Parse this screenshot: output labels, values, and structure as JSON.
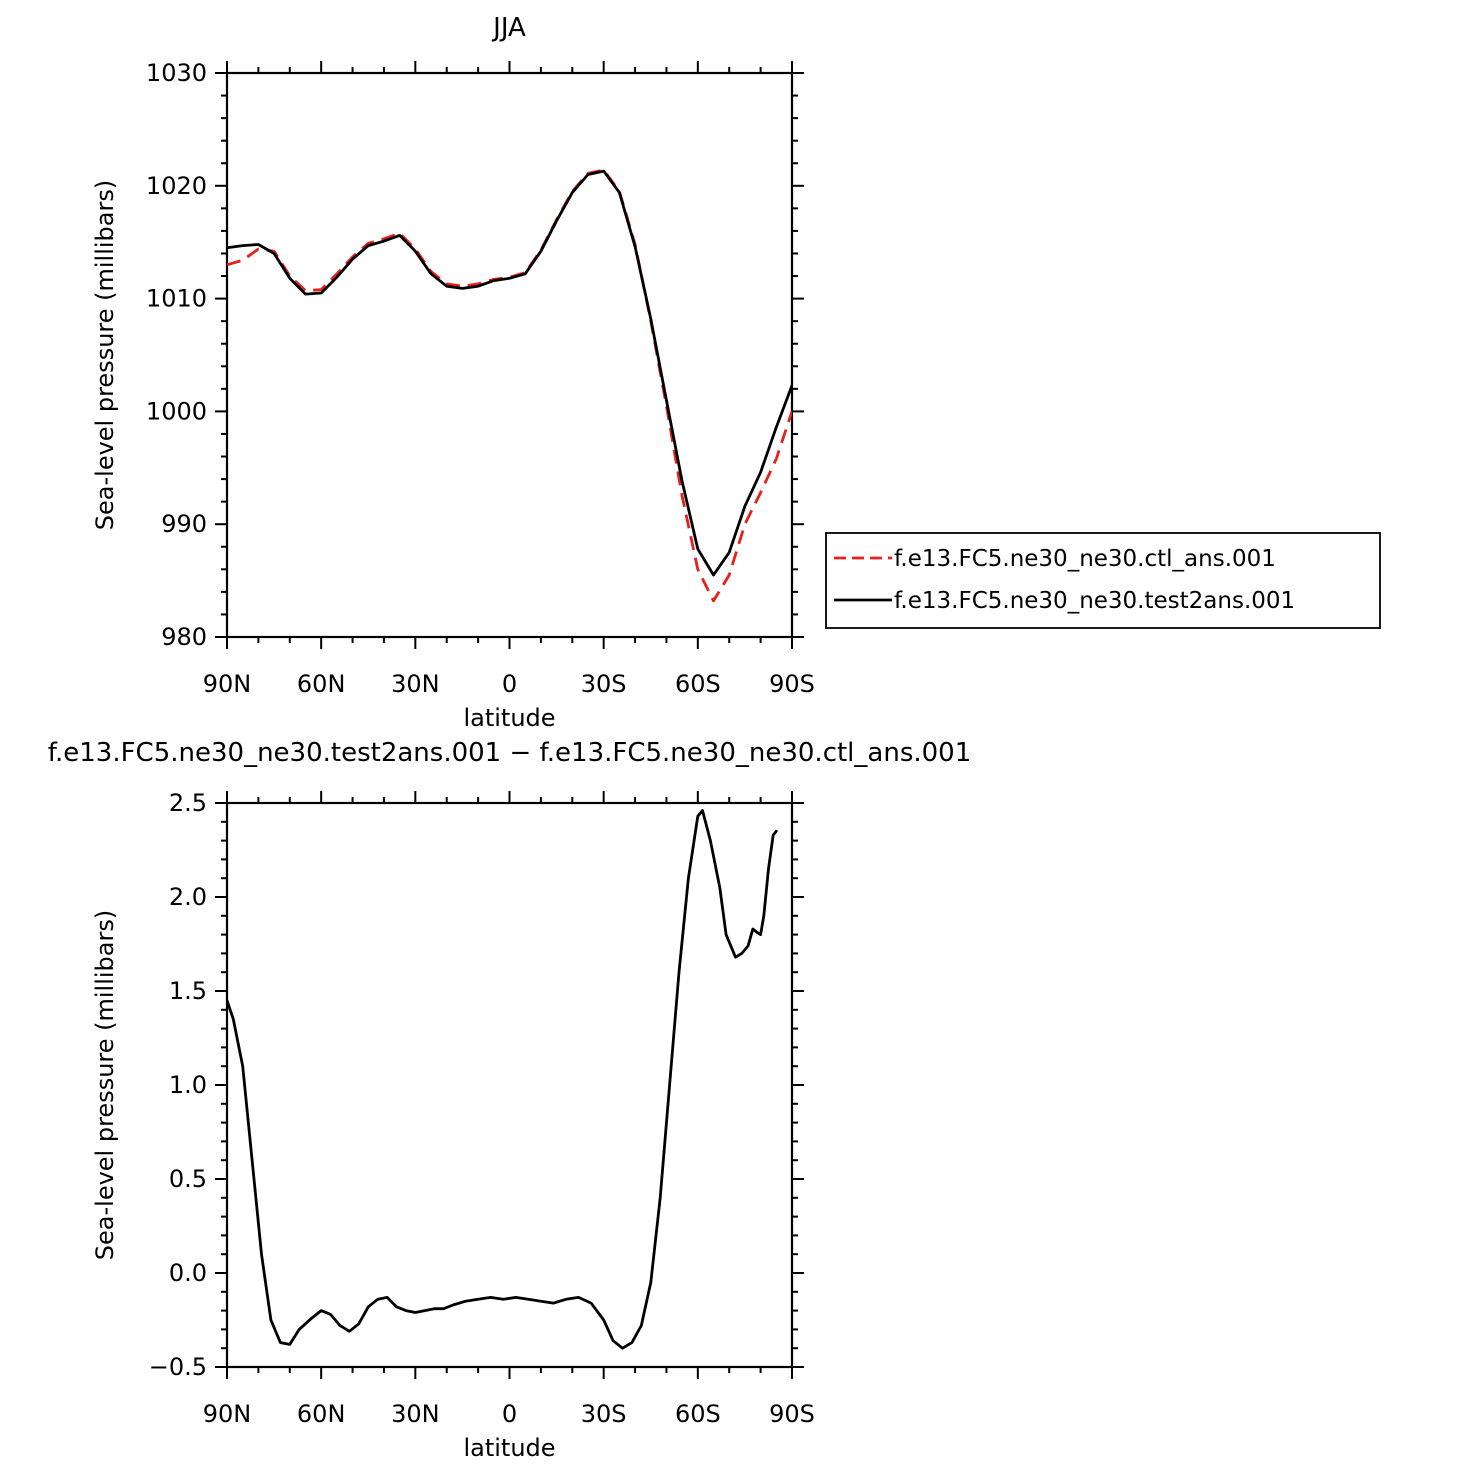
{
  "chart_data": [
    {
      "type": "line",
      "title": "JJA",
      "xlabel": "latitude",
      "ylabel": "Sea-level pressure (millibars)",
      "xlim": [
        90,
        -90
      ],
      "ylim": [
        980,
        1030
      ],
      "x_ticks": [
        90,
        60,
        30,
        0,
        -30,
        -60,
        -90
      ],
      "x_tick_labels": [
        "90N",
        "60N",
        "30N",
        "0",
        "30S",
        "60S",
        "90S"
      ],
      "y_ticks": [
        980,
        990,
        1000,
        1010,
        1020,
        1030
      ],
      "y_tick_labels": [
        "980",
        "990",
        "1000",
        "1010",
        "1020",
        "1030"
      ],
      "legend": "right",
      "series": [
        {
          "name": "f.e13.FC5.ne30_ne30.ctl_ans.001",
          "color": "#e8201c",
          "dash": "dashed",
          "points": [
            [
              90,
              1013.0
            ],
            [
              85,
              1013.4
            ],
            [
              80,
              1014.4
            ],
            [
              75,
              1014.2
            ],
            [
              70,
              1012.0
            ],
            [
              65,
              1010.7
            ],
            [
              60,
              1010.8
            ],
            [
              55,
              1012.2
            ],
            [
              50,
              1013.7
            ],
            [
              45,
              1014.9
            ],
            [
              40,
              1015.3
            ],
            [
              35,
              1015.8
            ],
            [
              30,
              1014.4
            ],
            [
              25,
              1012.4
            ],
            [
              20,
              1011.3
            ],
            [
              15,
              1011.1
            ],
            [
              10,
              1011.3
            ],
            [
              5,
              1011.7
            ],
            [
              0,
              1011.9
            ],
            [
              -5,
              1012.3
            ],
            [
              -10,
              1014.3
            ],
            [
              -15,
              1017.0
            ],
            [
              -20,
              1019.5
            ],
            [
              -25,
              1021.1
            ],
            [
              -30,
              1021.4
            ],
            [
              -35,
              1019.5
            ],
            [
              -40,
              1014.8
            ],
            [
              -45,
              1008.0
            ],
            [
              -50,
              1000.5
            ],
            [
              -55,
              992.5
            ],
            [
              -60,
              986.0
            ],
            [
              -65,
              983.2
            ],
            [
              -70,
              985.5
            ],
            [
              -75,
              990.0
            ],
            [
              -80,
              992.8
            ],
            [
              -85,
              995.8
            ],
            [
              -90,
              1000.0
            ]
          ]
        },
        {
          "name": "f.e13.FC5.ne30_ne30.test2ans.001",
          "color": "#000000",
          "dash": "solid",
          "points": [
            [
              90,
              1014.5
            ],
            [
              85,
              1014.7
            ],
            [
              80,
              1014.8
            ],
            [
              75,
              1014.0
            ],
            [
              70,
              1011.8
            ],
            [
              65,
              1010.4
            ],
            [
              60,
              1010.5
            ],
            [
              55,
              1011.9
            ],
            [
              50,
              1013.5
            ],
            [
              45,
              1014.7
            ],
            [
              40,
              1015.1
            ],
            [
              35,
              1015.6
            ],
            [
              30,
              1014.2
            ],
            [
              25,
              1012.2
            ],
            [
              20,
              1011.1
            ],
            [
              15,
              1010.9
            ],
            [
              10,
              1011.1
            ],
            [
              5,
              1011.6
            ],
            [
              0,
              1011.8
            ],
            [
              -5,
              1012.2
            ],
            [
              -10,
              1014.2
            ],
            [
              -15,
              1016.9
            ],
            [
              -20,
              1019.4
            ],
            [
              -25,
              1021.0
            ],
            [
              -30,
              1021.3
            ],
            [
              -35,
              1019.4
            ],
            [
              -40,
              1014.6
            ],
            [
              -45,
              1008.2
            ],
            [
              -50,
              1001.0
            ],
            [
              -55,
              993.8
            ],
            [
              -60,
              987.8
            ],
            [
              -65,
              985.5
            ],
            [
              -70,
              987.5
            ],
            [
              -75,
              991.6
            ],
            [
              -80,
              994.6
            ],
            [
              -85,
              998.6
            ],
            [
              -90,
              1002.3
            ]
          ]
        }
      ]
    },
    {
      "type": "line",
      "title": "f.e13.FC5.ne30_ne30.test2ans.001 − f.e13.FC5.ne30_ne30.ctl_ans.001",
      "xlabel": "latitude",
      "ylabel": "Sea-level pressure (millibars)",
      "xlim": [
        90,
        -90
      ],
      "ylim": [
        -0.5,
        2.5
      ],
      "x_ticks": [
        90,
        60,
        30,
        0,
        -30,
        -60,
        -90
      ],
      "x_tick_labels": [
        "90N",
        "60N",
        "30N",
        "0",
        "30S",
        "60S",
        "90S"
      ],
      "y_ticks": [
        -0.5,
        0.0,
        0.5,
        1.0,
        1.5,
        2.0,
        2.5
      ],
      "y_tick_labels": [
        "−0.5",
        "0.0",
        "0.5",
        "1.0",
        "1.5",
        "2.0",
        "2.5"
      ],
      "series": [
        {
          "color": "#000000",
          "dash": "solid",
          "points": [
            [
              90,
              1.45
            ],
            [
              88,
              1.35
            ],
            [
              85,
              1.1
            ],
            [
              82,
              0.6
            ],
            [
              79,
              0.1
            ],
            [
              76,
              -0.25
            ],
            [
              73,
              -0.37
            ],
            [
              70,
              -0.38
            ],
            [
              67,
              -0.3
            ],
            [
              63,
              -0.24
            ],
            [
              60,
              -0.2
            ],
            [
              57,
              -0.22
            ],
            [
              54,
              -0.28
            ],
            [
              51,
              -0.31
            ],
            [
              48,
              -0.27
            ],
            [
              45,
              -0.18
            ],
            [
              42,
              -0.14
            ],
            [
              39,
              -0.13
            ],
            [
              36,
              -0.18
            ],
            [
              33,
              -0.2
            ],
            [
              30,
              -0.21
            ],
            [
              27,
              -0.2
            ],
            [
              24,
              -0.19
            ],
            [
              21,
              -0.19
            ],
            [
              18,
              -0.17
            ],
            [
              14,
              -0.15
            ],
            [
              10,
              -0.14
            ],
            [
              6,
              -0.13
            ],
            [
              2,
              -0.14
            ],
            [
              -2,
              -0.13
            ],
            [
              -6,
              -0.14
            ],
            [
              -10,
              -0.15
            ],
            [
              -14,
              -0.16
            ],
            [
              -18,
              -0.14
            ],
            [
              -22,
              -0.13
            ],
            [
              -26,
              -0.16
            ],
            [
              -30,
              -0.25
            ],
            [
              -33,
              -0.36
            ],
            [
              -36,
              -0.4
            ],
            [
              -39,
              -0.37
            ],
            [
              -42,
              -0.28
            ],
            [
              -45,
              -0.05
            ],
            [
              -48,
              0.4
            ],
            [
              -51,
              1.0
            ],
            [
              -54,
              1.6
            ],
            [
              -57,
              2.1
            ],
            [
              -60,
              2.43
            ],
            [
              -61.5,
              2.46
            ],
            [
              -64,
              2.3
            ],
            [
              -67,
              2.05
            ],
            [
              -69,
              1.8
            ],
            [
              -72,
              1.68
            ],
            [
              -74,
              1.7
            ],
            [
              -76,
              1.74
            ],
            [
              -77.5,
              1.83
            ],
            [
              -79,
              1.81
            ],
            [
              -80,
              1.8
            ],
            [
              -81,
              1.9
            ],
            [
              -82.5,
              2.15
            ],
            [
              -84,
              2.33
            ],
            [
              -85,
              2.35
            ]
          ]
        }
      ]
    }
  ]
}
